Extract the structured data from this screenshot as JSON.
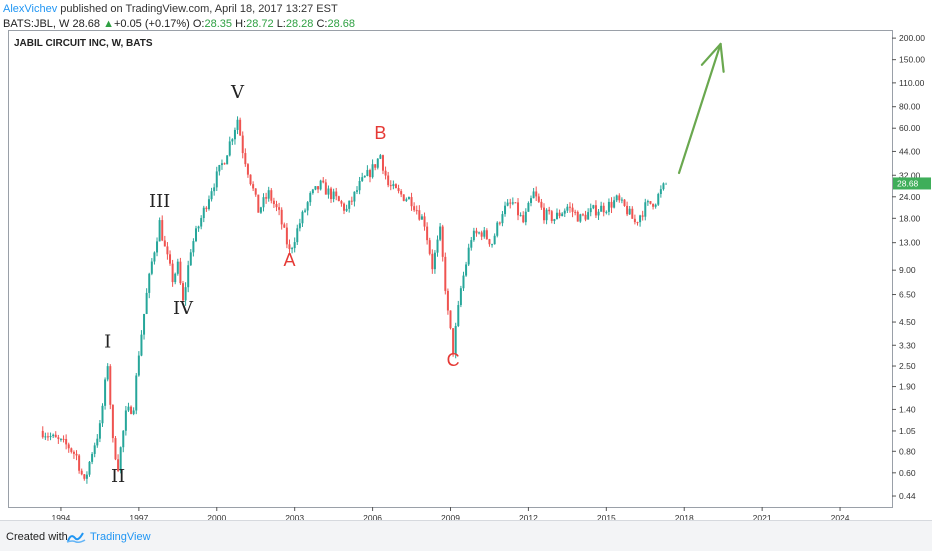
{
  "header": {
    "author": "AlexVichev",
    "published": " published on TradingView.com, April 18, 2017 13:27 EST"
  },
  "quote": {
    "symbol": "BATS:JBL, W",
    "last": "28.68",
    "change": "+0.05 (+0.17%)",
    "o_label": "O:",
    "o_value": "28.35",
    "h_label": "H:",
    "h_value": "28.72",
    "l_label": "L:",
    "l_value": "28.28",
    "c_label": "C:",
    "c_value": "28.68"
  },
  "footer": {
    "created": "Created with",
    "brand": "TradingView"
  },
  "colors": {
    "up": "#26a69a",
    "down": "#ef5350",
    "arrow": "#6aa84f",
    "wave_black": "#222222",
    "wave_red": "#e53935",
    "price_tag": "#3fae5a"
  },
  "chart_data": {
    "type": "candlestick",
    "title": "JABIL CIRCUIT INC, W, BATS",
    "y_scale": "log",
    "ylim": [
      0.38,
      220
    ],
    "xlim": [
      1992.0,
      2026.0
    ],
    "x_ticks": [
      "1994",
      "1997",
      "2000",
      "2003",
      "2006",
      "2009",
      "2012",
      "2015",
      "2018",
      "2021",
      "2024"
    ],
    "y_ticks": [
      "200.00",
      "150.00",
      "110.00",
      "80.00",
      "60.00",
      "44.00",
      "32.00",
      "24.00",
      "18.00",
      "13.00",
      "9.00",
      "6.50",
      "4.50",
      "3.30",
      "2.50",
      "1.90",
      "1.40",
      "1.05",
      "0.80",
      "0.60",
      "0.44"
    ],
    "last_price_label": "28.68",
    "series": [
      {
        "name": "JBL",
        "points": [
          [
            1993.3,
            1.05
          ],
          [
            1993.7,
            0.95
          ],
          [
            1994.0,
            0.9
          ],
          [
            1994.3,
            0.85
          ],
          [
            1994.6,
            0.75
          ],
          [
            1994.9,
            0.52
          ],
          [
            1995.2,
            0.8
          ],
          [
            1995.5,
            1.1
          ],
          [
            1995.8,
            2.6
          ],
          [
            1996.0,
            0.9
          ],
          [
            1996.2,
            0.66
          ],
          [
            1996.5,
            1.3
          ],
          [
            1996.8,
            1.5
          ],
          [
            1997.0,
            3.0
          ],
          [
            1997.3,
            6.5
          ],
          [
            1997.5,
            10.0
          ],
          [
            1997.8,
            17.0
          ],
          [
            1998.0,
            12.0
          ],
          [
            1998.3,
            8.0
          ],
          [
            1998.5,
            9.5
          ],
          [
            1998.7,
            5.8
          ],
          [
            1999.0,
            12.0
          ],
          [
            1999.4,
            18.0
          ],
          [
            1999.8,
            27.0
          ],
          [
            2000.3,
            40.0
          ],
          [
            2000.6,
            55.0
          ],
          [
            2000.8,
            68.0
          ],
          [
            2001.0,
            45.0
          ],
          [
            2001.3,
            30.0
          ],
          [
            2001.6,
            20.0
          ],
          [
            2002.0,
            25.0
          ],
          [
            2002.4,
            19.0
          ],
          [
            2002.8,
            11.5
          ],
          [
            2003.2,
            17.0
          ],
          [
            2003.6,
            24.0
          ],
          [
            2004.0,
            28.0
          ],
          [
            2004.5,
            24.0
          ],
          [
            2005.0,
            20.0
          ],
          [
            2005.5,
            28.0
          ],
          [
            2006.0,
            35.0
          ],
          [
            2006.3,
            42.0
          ],
          [
            2006.6,
            28.0
          ],
          [
            2007.0,
            25.0
          ],
          [
            2007.5,
            23.0
          ],
          [
            2008.0,
            17.0
          ],
          [
            2008.3,
            9.5
          ],
          [
            2008.6,
            15.0
          ],
          [
            2008.9,
            5.0
          ],
          [
            2009.1,
            3.1
          ],
          [
            2009.4,
            7.0
          ],
          [
            2009.8,
            14.0
          ],
          [
            2010.2,
            15.0
          ],
          [
            2010.6,
            13.0
          ],
          [
            2011.0,
            20.0
          ],
          [
            2011.4,
            22.0
          ],
          [
            2011.8,
            17.0
          ],
          [
            2012.2,
            25.0
          ],
          [
            2012.6,
            19.0
          ],
          [
            2013.0,
            18.0
          ],
          [
            2013.5,
            21.0
          ],
          [
            2014.0,
            18.0
          ],
          [
            2014.5,
            20.0
          ],
          [
            2015.0,
            21.0
          ],
          [
            2015.4,
            23.0
          ],
          [
            2015.8,
            20.0
          ],
          [
            2016.1,
            17.0
          ],
          [
            2016.5,
            21.0
          ],
          [
            2016.9,
            23.0
          ],
          [
            2017.3,
            28.68
          ]
        ]
      }
    ],
    "annotations": [
      {
        "text": "V",
        "x": 2000.8,
        "y": 90.0,
        "color": "black"
      },
      {
        "text": "III",
        "x": 1997.8,
        "y": 21.0,
        "color": "black"
      },
      {
        "text": "I",
        "x": 1995.8,
        "y": 3.2,
        "color": "black"
      },
      {
        "text": "II",
        "x": 1996.2,
        "y": 0.53,
        "color": "black"
      },
      {
        "text": "IV",
        "x": 1998.7,
        "y": 5.0,
        "color": "black"
      },
      {
        "text": "B",
        "x": 2006.3,
        "y": 52.0,
        "color": "red"
      },
      {
        "text": "A",
        "x": 2002.8,
        "y": 9.5,
        "color": "red"
      },
      {
        "text": "C",
        "x": 2009.1,
        "y": 2.5,
        "color": "red"
      }
    ],
    "arrow": {
      "from": [
        2017.8,
        33.0
      ],
      "to": [
        2019.4,
        185.0
      ]
    }
  }
}
